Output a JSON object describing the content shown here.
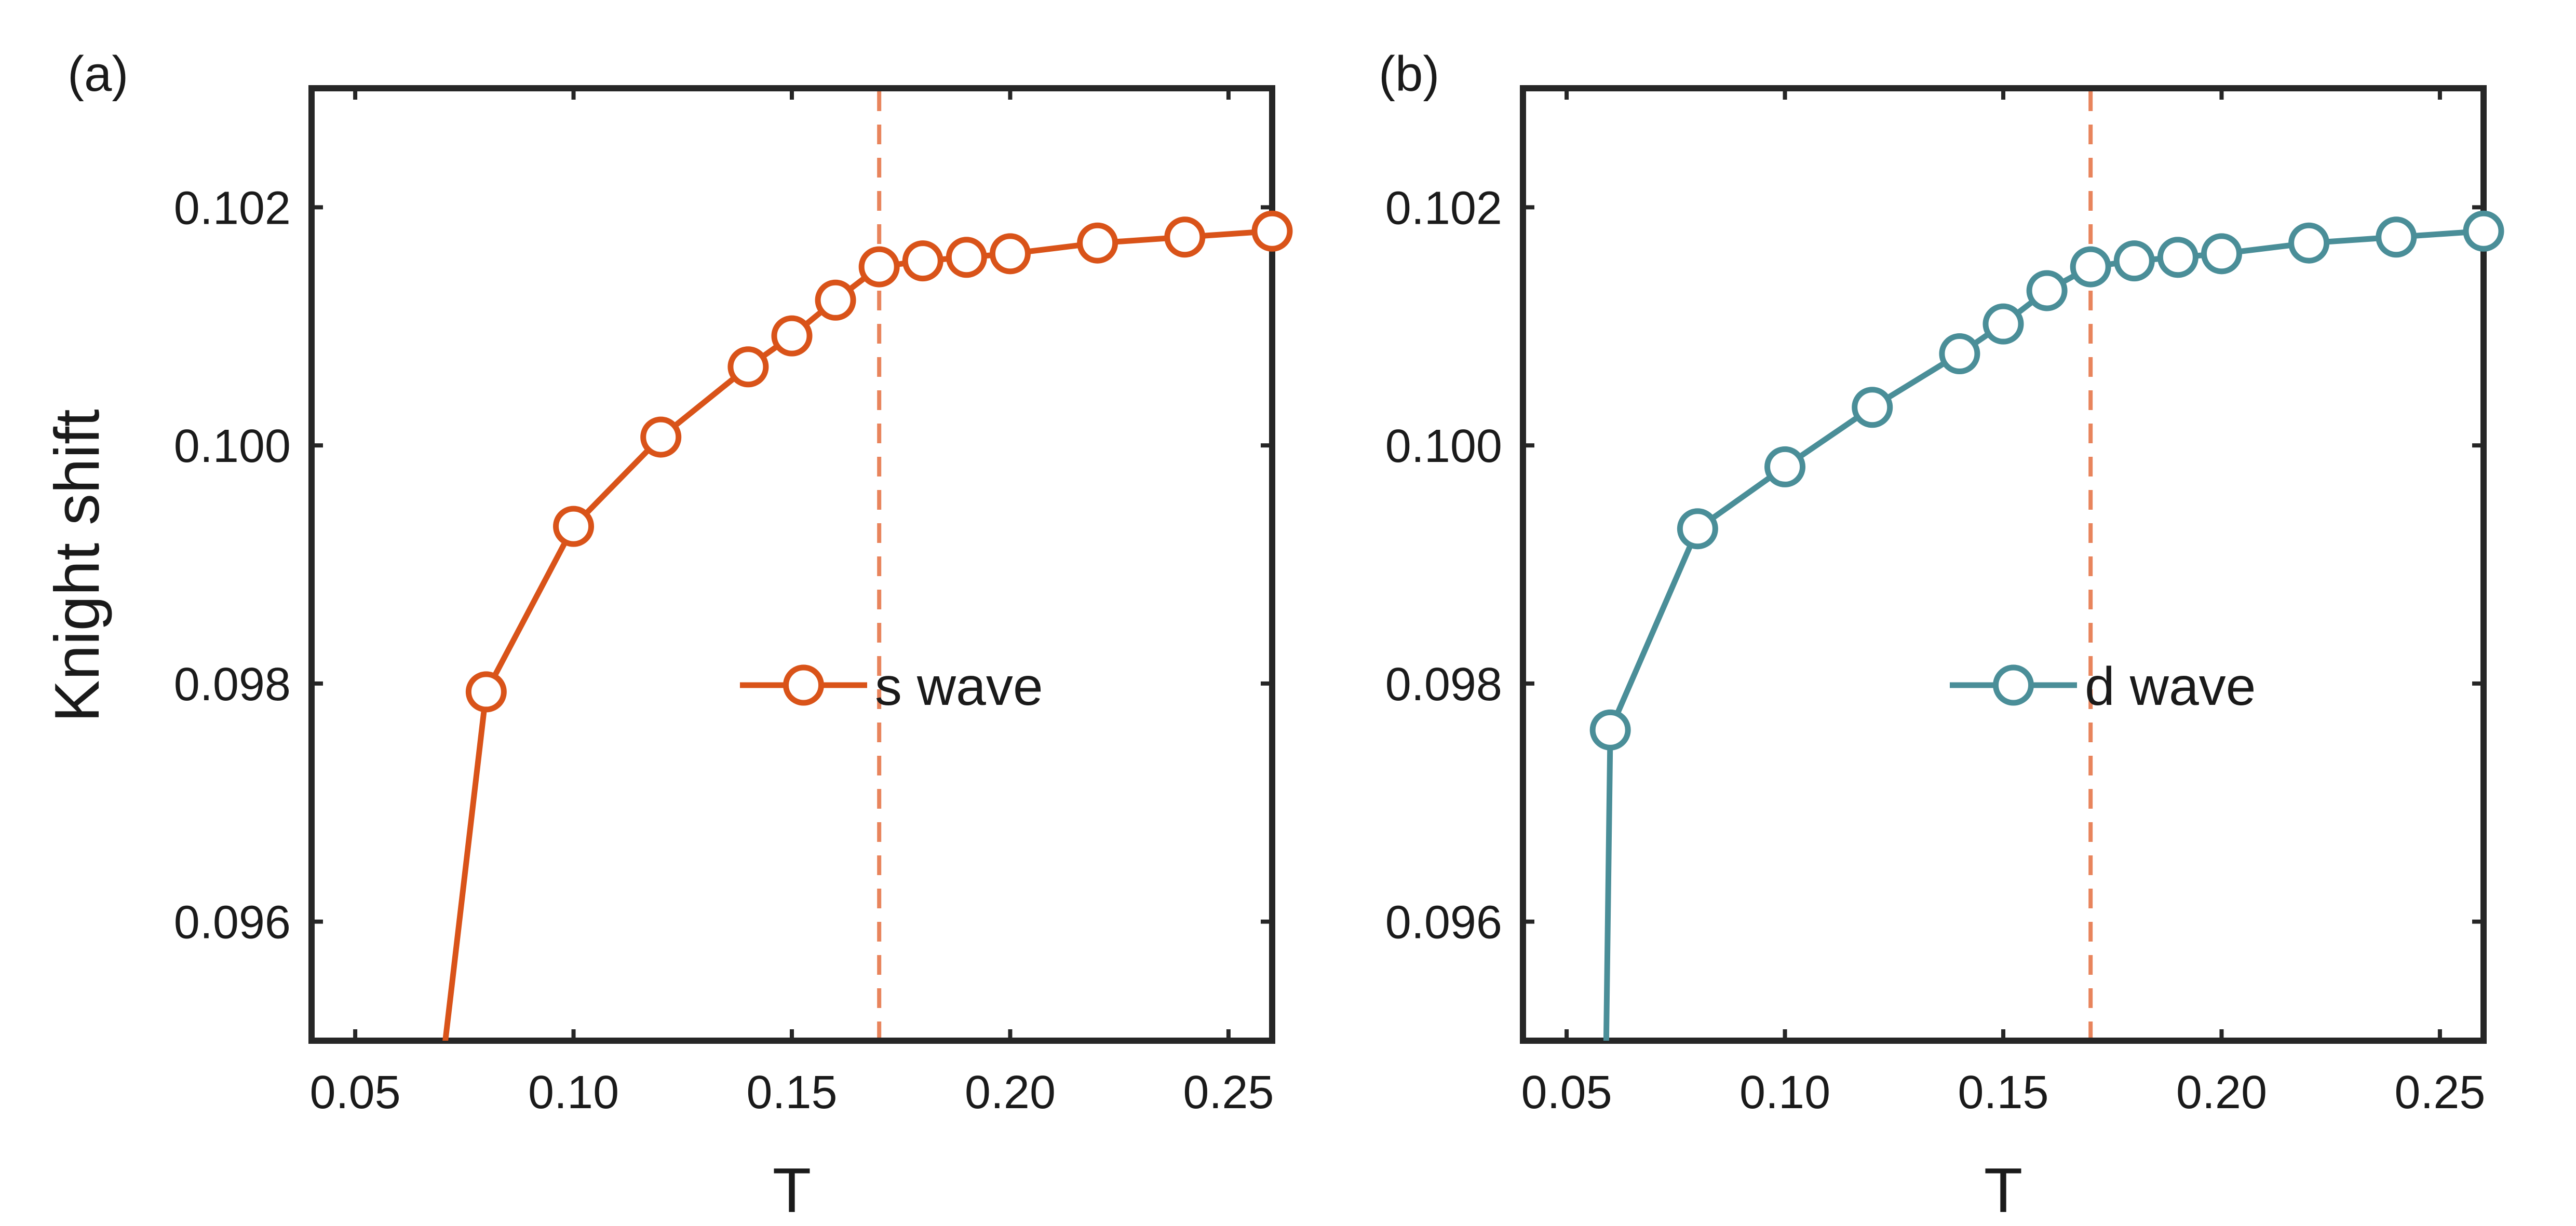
{
  "chart_data": [
    {
      "type": "line",
      "panel_label": "(a)",
      "xlabel": "T",
      "ylabel": "Knight shift",
      "xlim": [
        0.04,
        0.26
      ],
      "ylim": [
        0.095,
        0.103
      ],
      "xticks": [
        0.05,
        0.1,
        0.15,
        0.2,
        0.25
      ],
      "xtick_labels": [
        "0.05",
        "0.10",
        "0.15",
        "0.20",
        "0.25"
      ],
      "yticks": [
        0.096,
        0.098,
        0.1,
        0.102
      ],
      "ytick_labels": [
        "0.096",
        "0.098",
        "0.100",
        "0.102"
      ],
      "vline": {
        "x": 0.17,
        "color": "#E8845C",
        "style": "dashed"
      },
      "legend": {
        "position": "center-right"
      },
      "series": [
        {
          "name": "s wave",
          "color": "#D95319",
          "marker": "circle",
          "x": [
            0.07,
            0.08,
            0.1,
            0.12,
            0.14,
            0.15,
            0.16,
            0.17,
            0.18,
            0.19,
            0.2,
            0.22,
            0.24,
            0.26
          ],
          "y": [
            0.0948,
            0.09793,
            0.09932,
            0.10007,
            0.10066,
            0.10092,
            0.10122,
            0.1015,
            0.10155,
            0.10158,
            0.10161,
            0.1017,
            0.10175,
            0.1018
          ],
          "marked": [
            false,
            true,
            true,
            true,
            true,
            true,
            true,
            true,
            true,
            true,
            true,
            true,
            true,
            true
          ]
        }
      ]
    },
    {
      "type": "line",
      "panel_label": "(b)",
      "xlabel": "T",
      "ylabel": "",
      "xlim": [
        0.04,
        0.26
      ],
      "ylim": [
        0.095,
        0.103
      ],
      "xticks": [
        0.05,
        0.1,
        0.15,
        0.2,
        0.25
      ],
      "xtick_labels": [
        "0.05",
        "0.10",
        "0.15",
        "0.20",
        "0.25"
      ],
      "yticks": [
        0.096,
        0.098,
        0.1,
        0.102
      ],
      "ytick_labels": [
        "0.096",
        "0.098",
        "0.100",
        "0.102"
      ],
      "vline": {
        "x": 0.17,
        "color": "#E8845C",
        "style": "dashed"
      },
      "legend": {
        "position": "center-right"
      },
      "series": [
        {
          "name": "d wave",
          "color": "#4A8E98",
          "marker": "circle",
          "x": [
            0.059,
            0.06,
            0.08,
            0.1,
            0.12,
            0.14,
            0.15,
            0.16,
            0.17,
            0.18,
            0.19,
            0.2,
            0.22,
            0.24,
            0.26
          ],
          "y": [
            0.0948,
            0.09761,
            0.0993,
            0.09982,
            0.10032,
            0.10077,
            0.10102,
            0.1013,
            0.1015,
            0.10155,
            0.10158,
            0.10161,
            0.1017,
            0.10175,
            0.1018
          ],
          "marked": [
            false,
            true,
            true,
            true,
            true,
            true,
            true,
            true,
            true,
            true,
            true,
            true,
            true,
            true,
            true
          ]
        }
      ]
    }
  ]
}
